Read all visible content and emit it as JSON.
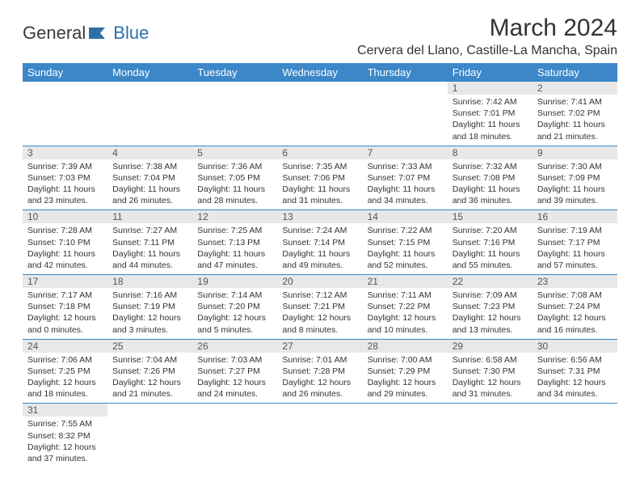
{
  "brand": {
    "part1": "General",
    "part2": "Blue"
  },
  "title": "March 2024",
  "location": "Cervera del Llano, Castille-La Mancha, Spain",
  "colors": {
    "header_bg": "#3b87c8",
    "header_text": "#ffffff",
    "daynum_bg": "#e8e8e8",
    "row_border": "#3b87c8",
    "body_text": "#333333",
    "background": "#ffffff"
  },
  "fonts": {
    "title_size_pt": 22,
    "location_size_pt": 12,
    "dayheader_size_pt": 10,
    "cell_size_pt": 8
  },
  "day_headers": [
    "Sunday",
    "Monday",
    "Tuesday",
    "Wednesday",
    "Thursday",
    "Friday",
    "Saturday"
  ],
  "weeks": [
    [
      null,
      null,
      null,
      null,
      null,
      {
        "n": "1",
        "sunrise": "Sunrise: 7:42 AM",
        "sunset": "Sunset: 7:01 PM",
        "daylight": "Daylight: 11 hours and 18 minutes."
      },
      {
        "n": "2",
        "sunrise": "Sunrise: 7:41 AM",
        "sunset": "Sunset: 7:02 PM",
        "daylight": "Daylight: 11 hours and 21 minutes."
      }
    ],
    [
      {
        "n": "3",
        "sunrise": "Sunrise: 7:39 AM",
        "sunset": "Sunset: 7:03 PM",
        "daylight": "Daylight: 11 hours and 23 minutes."
      },
      {
        "n": "4",
        "sunrise": "Sunrise: 7:38 AM",
        "sunset": "Sunset: 7:04 PM",
        "daylight": "Daylight: 11 hours and 26 minutes."
      },
      {
        "n": "5",
        "sunrise": "Sunrise: 7:36 AM",
        "sunset": "Sunset: 7:05 PM",
        "daylight": "Daylight: 11 hours and 28 minutes."
      },
      {
        "n": "6",
        "sunrise": "Sunrise: 7:35 AM",
        "sunset": "Sunset: 7:06 PM",
        "daylight": "Daylight: 11 hours and 31 minutes."
      },
      {
        "n": "7",
        "sunrise": "Sunrise: 7:33 AM",
        "sunset": "Sunset: 7:07 PM",
        "daylight": "Daylight: 11 hours and 34 minutes."
      },
      {
        "n": "8",
        "sunrise": "Sunrise: 7:32 AM",
        "sunset": "Sunset: 7:08 PM",
        "daylight": "Daylight: 11 hours and 36 minutes."
      },
      {
        "n": "9",
        "sunrise": "Sunrise: 7:30 AM",
        "sunset": "Sunset: 7:09 PM",
        "daylight": "Daylight: 11 hours and 39 minutes."
      }
    ],
    [
      {
        "n": "10",
        "sunrise": "Sunrise: 7:28 AM",
        "sunset": "Sunset: 7:10 PM",
        "daylight": "Daylight: 11 hours and 42 minutes."
      },
      {
        "n": "11",
        "sunrise": "Sunrise: 7:27 AM",
        "sunset": "Sunset: 7:11 PM",
        "daylight": "Daylight: 11 hours and 44 minutes."
      },
      {
        "n": "12",
        "sunrise": "Sunrise: 7:25 AM",
        "sunset": "Sunset: 7:13 PM",
        "daylight": "Daylight: 11 hours and 47 minutes."
      },
      {
        "n": "13",
        "sunrise": "Sunrise: 7:24 AM",
        "sunset": "Sunset: 7:14 PM",
        "daylight": "Daylight: 11 hours and 49 minutes."
      },
      {
        "n": "14",
        "sunrise": "Sunrise: 7:22 AM",
        "sunset": "Sunset: 7:15 PM",
        "daylight": "Daylight: 11 hours and 52 minutes."
      },
      {
        "n": "15",
        "sunrise": "Sunrise: 7:20 AM",
        "sunset": "Sunset: 7:16 PM",
        "daylight": "Daylight: 11 hours and 55 minutes."
      },
      {
        "n": "16",
        "sunrise": "Sunrise: 7:19 AM",
        "sunset": "Sunset: 7:17 PM",
        "daylight": "Daylight: 11 hours and 57 minutes."
      }
    ],
    [
      {
        "n": "17",
        "sunrise": "Sunrise: 7:17 AM",
        "sunset": "Sunset: 7:18 PM",
        "daylight": "Daylight: 12 hours and 0 minutes."
      },
      {
        "n": "18",
        "sunrise": "Sunrise: 7:16 AM",
        "sunset": "Sunset: 7:19 PM",
        "daylight": "Daylight: 12 hours and 3 minutes."
      },
      {
        "n": "19",
        "sunrise": "Sunrise: 7:14 AM",
        "sunset": "Sunset: 7:20 PM",
        "daylight": "Daylight: 12 hours and 5 minutes."
      },
      {
        "n": "20",
        "sunrise": "Sunrise: 7:12 AM",
        "sunset": "Sunset: 7:21 PM",
        "daylight": "Daylight: 12 hours and 8 minutes."
      },
      {
        "n": "21",
        "sunrise": "Sunrise: 7:11 AM",
        "sunset": "Sunset: 7:22 PM",
        "daylight": "Daylight: 12 hours and 10 minutes."
      },
      {
        "n": "22",
        "sunrise": "Sunrise: 7:09 AM",
        "sunset": "Sunset: 7:23 PM",
        "daylight": "Daylight: 12 hours and 13 minutes."
      },
      {
        "n": "23",
        "sunrise": "Sunrise: 7:08 AM",
        "sunset": "Sunset: 7:24 PM",
        "daylight": "Daylight: 12 hours and 16 minutes."
      }
    ],
    [
      {
        "n": "24",
        "sunrise": "Sunrise: 7:06 AM",
        "sunset": "Sunset: 7:25 PM",
        "daylight": "Daylight: 12 hours and 18 minutes."
      },
      {
        "n": "25",
        "sunrise": "Sunrise: 7:04 AM",
        "sunset": "Sunset: 7:26 PM",
        "daylight": "Daylight: 12 hours and 21 minutes."
      },
      {
        "n": "26",
        "sunrise": "Sunrise: 7:03 AM",
        "sunset": "Sunset: 7:27 PM",
        "daylight": "Daylight: 12 hours and 24 minutes."
      },
      {
        "n": "27",
        "sunrise": "Sunrise: 7:01 AM",
        "sunset": "Sunset: 7:28 PM",
        "daylight": "Daylight: 12 hours and 26 minutes."
      },
      {
        "n": "28",
        "sunrise": "Sunrise: 7:00 AM",
        "sunset": "Sunset: 7:29 PM",
        "daylight": "Daylight: 12 hours and 29 minutes."
      },
      {
        "n": "29",
        "sunrise": "Sunrise: 6:58 AM",
        "sunset": "Sunset: 7:30 PM",
        "daylight": "Daylight: 12 hours and 31 minutes."
      },
      {
        "n": "30",
        "sunrise": "Sunrise: 6:56 AM",
        "sunset": "Sunset: 7:31 PM",
        "daylight": "Daylight: 12 hours and 34 minutes."
      }
    ],
    [
      {
        "n": "31",
        "sunrise": "Sunrise: 7:55 AM",
        "sunset": "Sunset: 8:32 PM",
        "daylight": "Daylight: 12 hours and 37 minutes."
      },
      null,
      null,
      null,
      null,
      null,
      null
    ]
  ]
}
